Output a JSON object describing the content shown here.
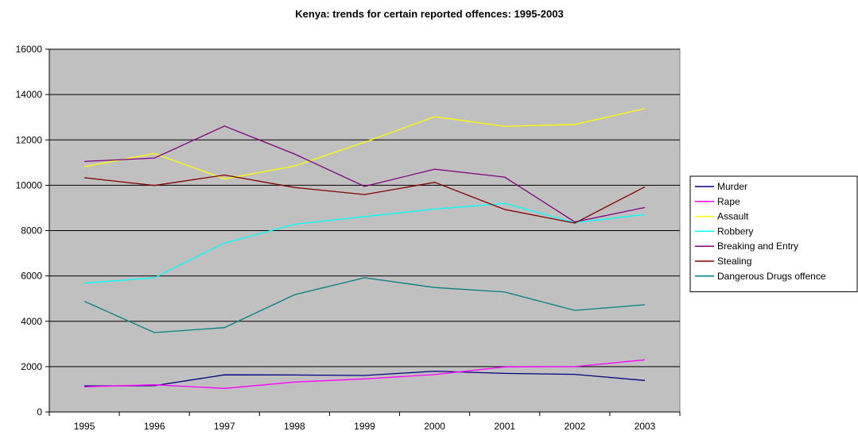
{
  "chart_data": {
    "type": "line",
    "title": "Kenya: trends for certain reported offences: 1995-2003",
    "xlabel": "",
    "ylabel": "",
    "categories": [
      "1995",
      "1996",
      "1997",
      "1998",
      "1999",
      "2000",
      "2001",
      "2002",
      "2003"
    ],
    "ylim": [
      0,
      16000
    ],
    "yticks": [
      0,
      2000,
      4000,
      6000,
      8000,
      10000,
      12000,
      14000,
      16000
    ],
    "grid": true,
    "legend_position": "right",
    "plot_background": "#c0c0c0",
    "series": [
      {
        "name": "Murder",
        "color": "#000080",
        "values": [
          1150,
          1160,
          1640,
          1630,
          1610,
          1800,
          1700,
          1660,
          1390
        ]
      },
      {
        "name": "Rape",
        "color": "#ff00ff",
        "values": [
          1110,
          1200,
          1040,
          1320,
          1460,
          1650,
          1990,
          2000,
          2300
        ]
      },
      {
        "name": "Assault",
        "color": "#ffff00",
        "values": [
          10820,
          11400,
          10280,
          10850,
          11900,
          13020,
          12600,
          12680,
          13380
        ]
      },
      {
        "name": "Robbery",
        "color": "#00ffff",
        "values": [
          5680,
          5920,
          7450,
          8280,
          8620,
          8950,
          9200,
          8350,
          8710
        ]
      },
      {
        "name": "Breaking and Entry",
        "color": "#800080",
        "values": [
          11050,
          11200,
          12610,
          11380,
          9950,
          10710,
          10360,
          8380,
          9020
        ]
      },
      {
        "name": "Stealing",
        "color": "#800000",
        "values": [
          10330,
          9990,
          10450,
          9900,
          9590,
          10130,
          8930,
          8330,
          9930
        ]
      },
      {
        "name": "Dangerous Drugs offence",
        "color": "#008080",
        "values": [
          4880,
          3500,
          3720,
          5170,
          5920,
          5490,
          5290,
          4480,
          4730
        ]
      }
    ]
  }
}
